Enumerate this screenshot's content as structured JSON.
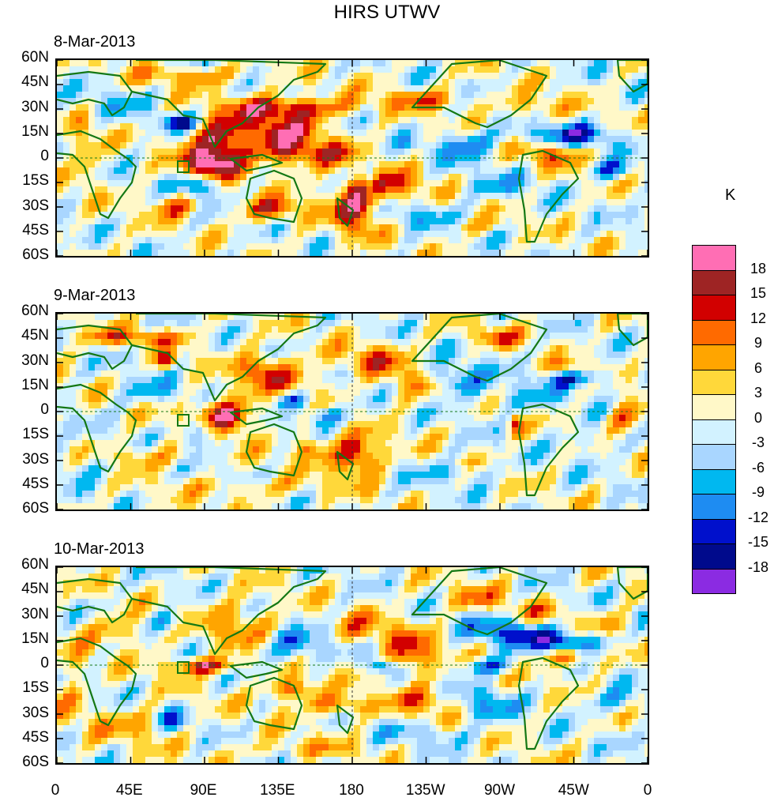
{
  "title": "HIRS UTWV",
  "unit": "K",
  "panels": [
    {
      "date": "8-Mar-2013"
    },
    {
      "date": "9-Mar-2013"
    },
    {
      "date": "10-Mar-2013"
    }
  ],
  "lat_labels": [
    "60N",
    "45N",
    "30N",
    "15N",
    "0",
    "15S",
    "30S",
    "45S",
    "60S"
  ],
  "lon_labels": [
    "0",
    "45E",
    "90E",
    "135E",
    "180",
    "135W",
    "90W",
    "45W",
    "0"
  ],
  "colorbar": {
    "labels": [
      "18",
      "15",
      "12",
      "9",
      "6",
      "3",
      "0",
      "-3",
      "-6",
      "-9",
      "-12",
      "-15",
      "-18"
    ],
    "colors": [
      "#ff6eb4",
      "#9e2424",
      "#d20000",
      "#ff6a00",
      "#ffa500",
      "#ffd83a",
      "#fff8c8",
      "#d2f2ff",
      "#a9d6ff",
      "#00b8f0",
      "#1e8cf2",
      "#0010cc",
      "#000a8c",
      "#8b2be2"
    ]
  },
  "colors": {
    "coastline": "#147814",
    "ocean_base": "#cfeefe"
  }
}
